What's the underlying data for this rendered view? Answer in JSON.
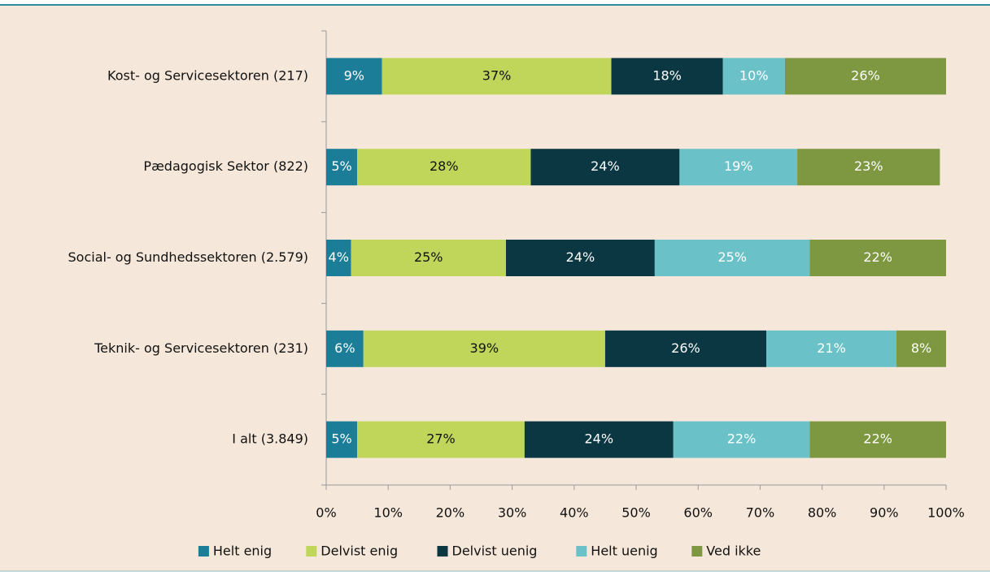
{
  "chart_data": {
    "type": "stacked-barh",
    "categories": [
      "Kost- og Servicesektoren (217)",
      "Pædagogisk Sektor (822)",
      "Social- og Sundhedssektoren (2.579)",
      "Teknik- og Servicesektoren (231)",
      "I alt (3.849)"
    ],
    "series": [
      {
        "name": "Helt enig",
        "color": "#1b7d97",
        "values": [
          9,
          5,
          4,
          6,
          5
        ],
        "value_labels": [
          "9%",
          "5%",
          "4%",
          "6%",
          "5%"
        ]
      },
      {
        "name": "Delvist enig",
        "color": "#bfd65b",
        "values": [
          37,
          28,
          25,
          39,
          27
        ],
        "value_labels": [
          "37%",
          "28%",
          "25%",
          "39%",
          "27%"
        ]
      },
      {
        "name": "Delvist uenig",
        "color": "#0a3742",
        "values": [
          18,
          24,
          24,
          26,
          24
        ],
        "value_labels": [
          "18%",
          "24%",
          "24%",
          "26%",
          "24%"
        ]
      },
      {
        "name": "Helt uenig",
        "color": "#6ac2c8",
        "values": [
          10,
          19,
          25,
          21,
          22
        ],
        "value_labels": [
          "10%",
          "19%",
          "25%",
          "21%",
          "22%"
        ]
      },
      {
        "name": "Ved ikke",
        "color": "#7e9741",
        "values": [
          26,
          23,
          22,
          8,
          22
        ],
        "value_labels": [
          "26%",
          "23%",
          "22%",
          "8%",
          "22%"
        ]
      }
    ],
    "xlim": [
      0,
      100
    ],
    "xticks": [
      {
        "value": 0,
        "label": "0%"
      },
      {
        "value": 10,
        "label": "10%"
      },
      {
        "value": 20,
        "label": "20%"
      },
      {
        "value": 30,
        "label": "30%"
      },
      {
        "value": 40,
        "label": "40%"
      },
      {
        "value": 50,
        "label": "50%"
      },
      {
        "value": 60,
        "label": "60%"
      },
      {
        "value": 70,
        "label": "70%"
      },
      {
        "value": 80,
        "label": "80%"
      },
      {
        "value": 90,
        "label": "90%"
      },
      {
        "value": 100,
        "label": "100%"
      }
    ],
    "legend": "bottom"
  }
}
